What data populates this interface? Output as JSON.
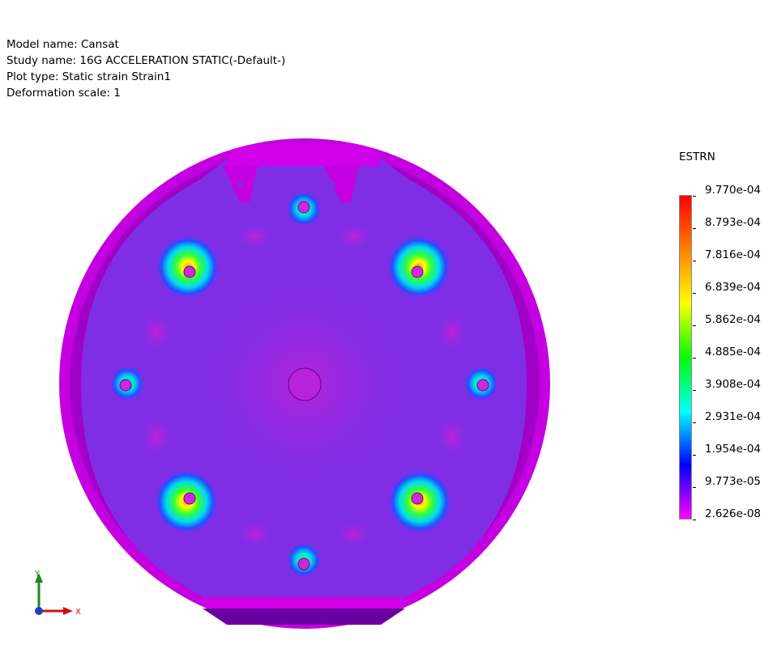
{
  "header": {
    "model_name": "Model name: Cansat",
    "study_name": "Study name: 16G ACCELERATION STATIC(-Default-)",
    "plot_type": "Plot type: Static strain Strain1",
    "deformation_scale": "Deformation scale: 1"
  },
  "legend": {
    "title": "ESTRN",
    "ticks": [
      "9.770e-04",
      "8.793e-04",
      "7.816e-04",
      "6.839e-04",
      "5.862e-04",
      "4.885e-04",
      "3.908e-04",
      "2.931e-04",
      "1.954e-04",
      "9.773e-05",
      "2.626e-08"
    ],
    "gradient_colors": [
      "#ff0000",
      "#ff8000",
      "#ffff00",
      "#00ff00",
      "#00ffff",
      "#0000ff",
      "#ff00ff"
    ]
  },
  "triad": {
    "y_label": "Y",
    "x_label": "X"
  },
  "colors": {
    "rim": "#c400e0",
    "plate": "#7f2ee6",
    "low_strain_spot": "#c41fd8",
    "hole": "#cf2ad8"
  }
}
